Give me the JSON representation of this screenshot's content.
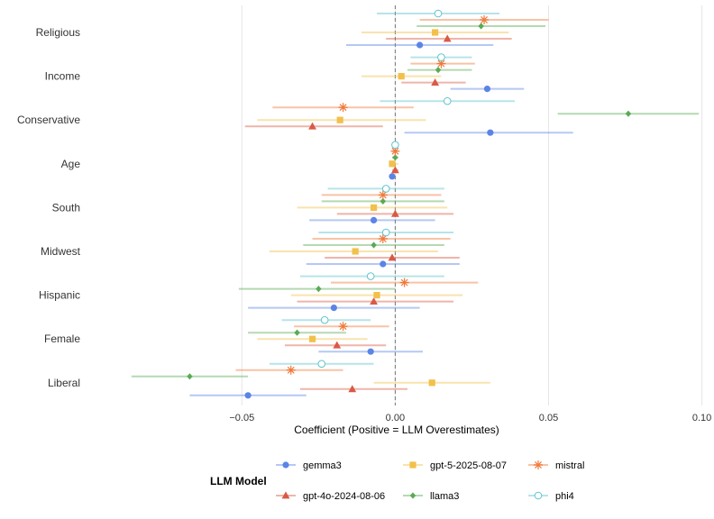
{
  "chart_data": {
    "type": "scatter",
    "subtype": "coefficient-plot-with-error-bars",
    "xlabel": "Coefficient (Positive = LLM Overestimates)",
    "ylabel": "",
    "xlim": [
      -0.098,
      0.101
    ],
    "x_ticks": [
      -0.05,
      0.0,
      0.05,
      0.1
    ],
    "x_tick_labels": [
      "−0.05",
      "0.00",
      "0.05",
      "0.10"
    ],
    "reference_line": 0,
    "grid": "vertical major lines",
    "categories": [
      "Religious",
      "Income",
      "Conservative",
      "Age",
      "South",
      "Midwest",
      "Hispanic",
      "Female",
      "Liberal"
    ],
    "legend": {
      "title": "LLM Model",
      "position": "bottom"
    },
    "series": [
      {
        "name": "gemma3",
        "color": "#5b84e6",
        "marker": "circle",
        "points": [
          {
            "category": "Religious",
            "est": 0.008,
            "lo": -0.016,
            "hi": 0.032
          },
          {
            "category": "Income",
            "est": 0.03,
            "lo": 0.018,
            "hi": 0.042
          },
          {
            "category": "Conservative",
            "est": 0.031,
            "lo": 0.003,
            "hi": 0.058
          },
          {
            "category": "Age",
            "est": -0.001,
            "lo": -0.002,
            "hi": 0.0
          },
          {
            "category": "South",
            "est": -0.007,
            "lo": -0.028,
            "hi": 0.013
          },
          {
            "category": "Midwest",
            "est": -0.004,
            "lo": -0.029,
            "hi": 0.021
          },
          {
            "category": "Hispanic",
            "est": -0.02,
            "lo": -0.048,
            "hi": 0.008
          },
          {
            "category": "Female",
            "est": -0.008,
            "lo": -0.025,
            "hi": 0.009
          },
          {
            "category": "Liberal",
            "est": -0.048,
            "lo": -0.067,
            "hi": -0.029
          }
        ]
      },
      {
        "name": "gpt-4o-2024-08-06",
        "color": "#d95a45",
        "marker": "triangle",
        "points": [
          {
            "category": "Religious",
            "est": 0.017,
            "lo": -0.003,
            "hi": 0.038
          },
          {
            "category": "Income",
            "est": 0.013,
            "lo": 0.002,
            "hi": 0.023
          },
          {
            "category": "Conservative",
            "est": -0.027,
            "lo": -0.049,
            "hi": -0.004
          },
          {
            "category": "Age",
            "est": 0.0,
            "lo": -0.001,
            "hi": 0.001
          },
          {
            "category": "South",
            "est": 0.0,
            "lo": -0.019,
            "hi": 0.019
          },
          {
            "category": "Midwest",
            "est": -0.001,
            "lo": -0.023,
            "hi": 0.021
          },
          {
            "category": "Hispanic",
            "est": -0.007,
            "lo": -0.032,
            "hi": 0.019
          },
          {
            "category": "Female",
            "est": -0.019,
            "lo": -0.036,
            "hi": -0.003
          },
          {
            "category": "Liberal",
            "est": -0.014,
            "lo": -0.031,
            "hi": 0.004
          }
        ]
      },
      {
        "name": "gpt-5-2025-08-07",
        "color": "#f2c04b",
        "marker": "square",
        "points": [
          {
            "category": "Religious",
            "est": 0.013,
            "lo": -0.011,
            "hi": 0.037
          },
          {
            "category": "Income",
            "est": 0.002,
            "lo": -0.011,
            "hi": 0.015
          },
          {
            "category": "Conservative",
            "est": -0.018,
            "lo": -0.045,
            "hi": 0.01
          },
          {
            "category": "Age",
            "est": -0.001,
            "lo": -0.002,
            "hi": 0.001
          },
          {
            "category": "South",
            "est": -0.007,
            "lo": -0.032,
            "hi": 0.017
          },
          {
            "category": "Midwest",
            "est": -0.013,
            "lo": -0.041,
            "hi": 0.014
          },
          {
            "category": "Hispanic",
            "est": -0.006,
            "lo": -0.034,
            "hi": 0.022
          },
          {
            "category": "Female",
            "est": -0.027,
            "lo": -0.045,
            "hi": -0.009
          },
          {
            "category": "Liberal",
            "est": 0.012,
            "lo": -0.007,
            "hi": 0.031
          }
        ]
      },
      {
        "name": "llama3",
        "color": "#5aaa55",
        "marker": "diamond",
        "points": [
          {
            "category": "Religious",
            "est": 0.028,
            "lo": 0.007,
            "hi": 0.049
          },
          {
            "category": "Income",
            "est": 0.014,
            "lo": 0.004,
            "hi": 0.025
          },
          {
            "category": "Conservative",
            "est": 0.076,
            "lo": 0.053,
            "hi": 0.099
          },
          {
            "category": "Age",
            "est": 0.0,
            "lo": -0.001,
            "hi": 0.001
          },
          {
            "category": "South",
            "est": -0.004,
            "lo": -0.024,
            "hi": 0.016
          },
          {
            "category": "Midwest",
            "est": -0.007,
            "lo": -0.03,
            "hi": 0.016
          },
          {
            "category": "Hispanic",
            "est": -0.025,
            "lo": -0.051,
            "hi": 0.0
          },
          {
            "category": "Female",
            "est": -0.032,
            "lo": -0.048,
            "hi": -0.016
          },
          {
            "category": "Liberal",
            "est": -0.067,
            "lo": -0.086,
            "hi": -0.048
          }
        ]
      },
      {
        "name": "mistral",
        "color": "#ef7a3a",
        "marker": "asterisk",
        "points": [
          {
            "category": "Religious",
            "est": 0.029,
            "lo": 0.008,
            "hi": 0.05
          },
          {
            "category": "Income",
            "est": 0.015,
            "lo": 0.005,
            "hi": 0.026
          },
          {
            "category": "Conservative",
            "est": -0.017,
            "lo": -0.04,
            "hi": 0.006
          },
          {
            "category": "Age",
            "est": 0.0,
            "lo": -0.001,
            "hi": 0.001
          },
          {
            "category": "South",
            "est": -0.004,
            "lo": -0.024,
            "hi": 0.015
          },
          {
            "category": "Midwest",
            "est": -0.004,
            "lo": -0.027,
            "hi": 0.018
          },
          {
            "category": "Hispanic",
            "est": 0.003,
            "lo": -0.021,
            "hi": 0.027
          },
          {
            "category": "Female",
            "est": -0.017,
            "lo": -0.033,
            "hi": -0.002
          },
          {
            "category": "Liberal",
            "est": -0.034,
            "lo": -0.052,
            "hi": -0.017
          }
        ]
      },
      {
        "name": "phi4",
        "color": "#5fc4cf",
        "marker": "open-circle",
        "points": [
          {
            "category": "Religious",
            "est": 0.014,
            "lo": -0.006,
            "hi": 0.034
          },
          {
            "category": "Income",
            "est": 0.015,
            "lo": 0.005,
            "hi": 0.025
          },
          {
            "category": "Conservative",
            "est": 0.017,
            "lo": -0.005,
            "hi": 0.039
          },
          {
            "category": "Age",
            "est": 0.0,
            "lo": -0.001,
            "hi": 0.001
          },
          {
            "category": "South",
            "est": -0.003,
            "lo": -0.022,
            "hi": 0.016
          },
          {
            "category": "Midwest",
            "est": -0.003,
            "lo": -0.025,
            "hi": 0.019
          },
          {
            "category": "Hispanic",
            "est": -0.008,
            "lo": -0.031,
            "hi": 0.016
          },
          {
            "category": "Female",
            "est": -0.023,
            "lo": -0.037,
            "hi": -0.008
          },
          {
            "category": "Liberal",
            "est": -0.024,
            "lo": -0.041,
            "hi": -0.007
          }
        ]
      }
    ]
  }
}
